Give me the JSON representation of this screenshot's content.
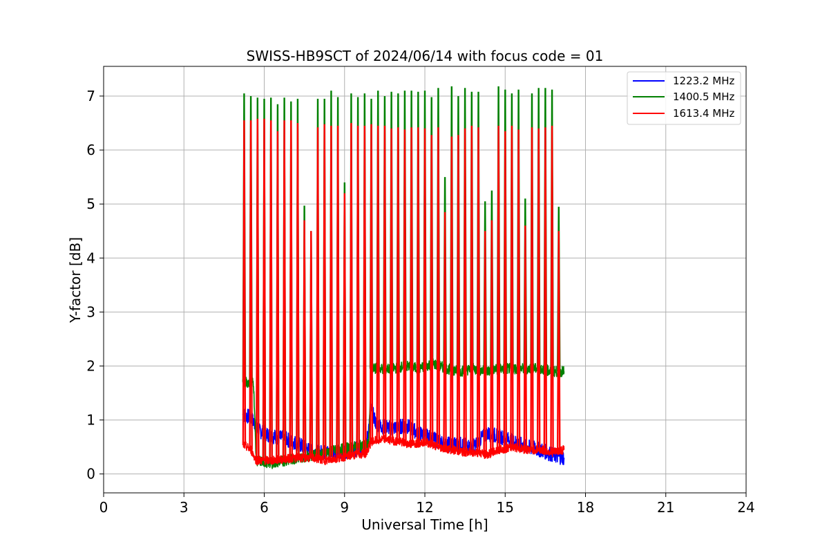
{
  "chart_data": {
    "type": "line",
    "title": "SWISS-HB9SCT of 2024/06/14 with focus code = 01",
    "xlabel": "Universal Time [h]",
    "ylabel": "Y-factor [dB]",
    "xlim": [
      0,
      24
    ],
    "ylim": [
      -0.35,
      7.55
    ],
    "xticks": [
      0,
      3,
      6,
      9,
      12,
      15,
      18,
      21,
      24
    ],
    "yticks": [
      0,
      1,
      2,
      3,
      4,
      5,
      6,
      7
    ],
    "grid": true,
    "legend_position": "top-right",
    "series": [
      {
        "name": "1223.2 MHz",
        "color": "#0000ff",
        "points": [
          [
            5.2,
            1.1
          ],
          [
            5.5,
            1.05
          ],
          [
            5.8,
            0.8
          ],
          [
            6.3,
            0.7
          ],
          [
            6.8,
            0.65
          ],
          [
            7.3,
            0.55
          ],
          [
            7.8,
            0.4
          ],
          [
            8.3,
            0.4
          ],
          [
            8.8,
            0.4
          ],
          [
            9.3,
            0.45
          ],
          [
            9.8,
            0.5
          ],
          [
            10.0,
            1.2
          ],
          [
            10.2,
            0.9
          ],
          [
            10.8,
            0.85
          ],
          [
            11.3,
            0.9
          ],
          [
            11.8,
            0.75
          ],
          [
            12.3,
            0.65
          ],
          [
            12.8,
            0.55
          ],
          [
            13.3,
            0.55
          ],
          [
            13.8,
            0.5
          ],
          [
            14.3,
            0.75
          ],
          [
            14.8,
            0.7
          ],
          [
            15.3,
            0.6
          ],
          [
            15.8,
            0.5
          ],
          [
            16.3,
            0.45
          ],
          [
            16.8,
            0.35
          ],
          [
            17.2,
            0.3
          ]
        ]
      },
      {
        "name": "1400.5 MHz",
        "color": "#008000",
        "points": [
          [
            5.2,
            1.7
          ],
          [
            5.6,
            1.7
          ],
          [
            5.7,
            0.25
          ],
          [
            6.3,
            0.2
          ],
          [
            6.8,
            0.25
          ],
          [
            7.3,
            0.3
          ],
          [
            7.8,
            0.35
          ],
          [
            8.3,
            0.4
          ],
          [
            8.8,
            0.45
          ],
          [
            9.3,
            0.5
          ],
          [
            9.9,
            0.55
          ],
          [
            10.0,
            1.95
          ],
          [
            10.8,
            1.95
          ],
          [
            11.3,
            2.0
          ],
          [
            11.8,
            1.95
          ],
          [
            12.3,
            2.05
          ],
          [
            12.8,
            1.95
          ],
          [
            13.3,
            1.9
          ],
          [
            13.8,
            1.95
          ],
          [
            14.3,
            1.9
          ],
          [
            14.8,
            1.95
          ],
          [
            15.3,
            1.95
          ],
          [
            15.8,
            1.95
          ],
          [
            16.3,
            1.95
          ],
          [
            16.8,
            1.9
          ],
          [
            17.2,
            1.9
          ]
        ],
        "peaks": [
          [
            5.25,
            7.05
          ],
          [
            5.5,
            7.0
          ],
          [
            5.75,
            6.97
          ],
          [
            6.0,
            6.95
          ],
          [
            6.25,
            6.97
          ],
          [
            6.5,
            6.85
          ],
          [
            6.75,
            6.97
          ],
          [
            7.0,
            6.9
          ],
          [
            7.25,
            6.95
          ],
          [
            7.5,
            4.97
          ],
          [
            7.75,
            4.5
          ],
          [
            8.0,
            6.95
          ],
          [
            8.25,
            6.95
          ],
          [
            8.5,
            7.1
          ],
          [
            8.75,
            6.98
          ],
          [
            9.0,
            5.4
          ],
          [
            9.25,
            7.05
          ],
          [
            9.5,
            6.98
          ],
          [
            9.75,
            7.05
          ],
          [
            10.0,
            6.95
          ],
          [
            10.25,
            7.1
          ],
          [
            10.5,
            7.0
          ],
          [
            10.75,
            7.08
          ],
          [
            11.0,
            7.05
          ],
          [
            11.25,
            7.1
          ],
          [
            11.5,
            7.1
          ],
          [
            11.75,
            7.08
          ],
          [
            12.0,
            7.1
          ],
          [
            12.25,
            6.98
          ],
          [
            12.5,
            7.15
          ],
          [
            12.75,
            5.5
          ],
          [
            13.0,
            7.18
          ],
          [
            13.25,
            7.0
          ],
          [
            13.5,
            7.15
          ],
          [
            13.75,
            7.08
          ],
          [
            14.0,
            7.08
          ],
          [
            14.25,
            5.05
          ],
          [
            14.5,
            5.25
          ],
          [
            14.75,
            7.18
          ],
          [
            15.0,
            7.12
          ],
          [
            15.25,
            7.05
          ],
          [
            15.5,
            7.12
          ],
          [
            15.75,
            5.1
          ],
          [
            16.0,
            7.05
          ],
          [
            16.25,
            7.15
          ],
          [
            16.5,
            7.15
          ],
          [
            16.75,
            7.12
          ],
          [
            17.0,
            4.95
          ]
        ]
      },
      {
        "name": "1613.4 MHz",
        "color": "#ff0000",
        "points": [
          [
            5.2,
            0.55
          ],
          [
            5.5,
            0.45
          ],
          [
            5.7,
            0.25
          ],
          [
            6.3,
            0.25
          ],
          [
            6.8,
            0.28
          ],
          [
            7.3,
            0.3
          ],
          [
            7.8,
            0.3
          ],
          [
            8.3,
            0.25
          ],
          [
            8.8,
            0.3
          ],
          [
            9.3,
            0.35
          ],
          [
            9.8,
            0.38
          ],
          [
            10.0,
            0.6
          ],
          [
            10.5,
            0.65
          ],
          [
            11.0,
            0.6
          ],
          [
            11.5,
            0.55
          ],
          [
            12.0,
            0.6
          ],
          [
            12.5,
            0.5
          ],
          [
            13.0,
            0.45
          ],
          [
            13.5,
            0.4
          ],
          [
            14.0,
            0.4
          ],
          [
            14.3,
            0.35
          ],
          [
            14.8,
            0.45
          ],
          [
            15.3,
            0.5
          ],
          [
            15.8,
            0.45
          ],
          [
            16.3,
            0.45
          ],
          [
            16.8,
            0.4
          ],
          [
            17.2,
            0.45
          ]
        ],
        "peaks": [
          [
            5.25,
            6.55
          ],
          [
            5.5,
            6.55
          ],
          [
            5.75,
            6.58
          ],
          [
            6.0,
            6.58
          ],
          [
            6.25,
            6.55
          ],
          [
            6.5,
            6.35
          ],
          [
            6.75,
            6.55
          ],
          [
            7.0,
            6.55
          ],
          [
            7.25,
            6.5
          ],
          [
            7.5,
            4.7
          ],
          [
            7.75,
            4.5
          ],
          [
            8.0,
            6.42
          ],
          [
            8.25,
            6.48
          ],
          [
            8.5,
            6.45
          ],
          [
            8.75,
            6.45
          ],
          [
            9.0,
            5.2
          ],
          [
            9.25,
            6.5
          ],
          [
            9.5,
            6.45
          ],
          [
            9.75,
            6.45
          ],
          [
            10.0,
            6.48
          ],
          [
            10.25,
            6.45
          ],
          [
            10.5,
            6.45
          ],
          [
            10.75,
            6.4
          ],
          [
            11.0,
            6.42
          ],
          [
            11.25,
            6.38
          ],
          [
            11.5,
            6.42
          ],
          [
            11.75,
            6.42
          ],
          [
            12.0,
            6.4
          ],
          [
            12.25,
            6.28
          ],
          [
            12.5,
            6.42
          ],
          [
            12.75,
            4.85
          ],
          [
            13.0,
            6.25
          ],
          [
            13.25,
            6.28
          ],
          [
            13.5,
            6.4
          ],
          [
            13.75,
            6.45
          ],
          [
            14.0,
            6.42
          ],
          [
            14.25,
            4.5
          ],
          [
            14.5,
            4.7
          ],
          [
            14.75,
            6.45
          ],
          [
            15.0,
            6.35
          ],
          [
            15.25,
            6.45
          ],
          [
            15.5,
            6.38
          ],
          [
            15.75,
            4.6
          ],
          [
            16.0,
            6.42
          ],
          [
            16.25,
            6.4
          ],
          [
            16.5,
            6.42
          ],
          [
            16.75,
            6.45
          ],
          [
            17.0,
            4.5
          ]
        ]
      }
    ]
  }
}
